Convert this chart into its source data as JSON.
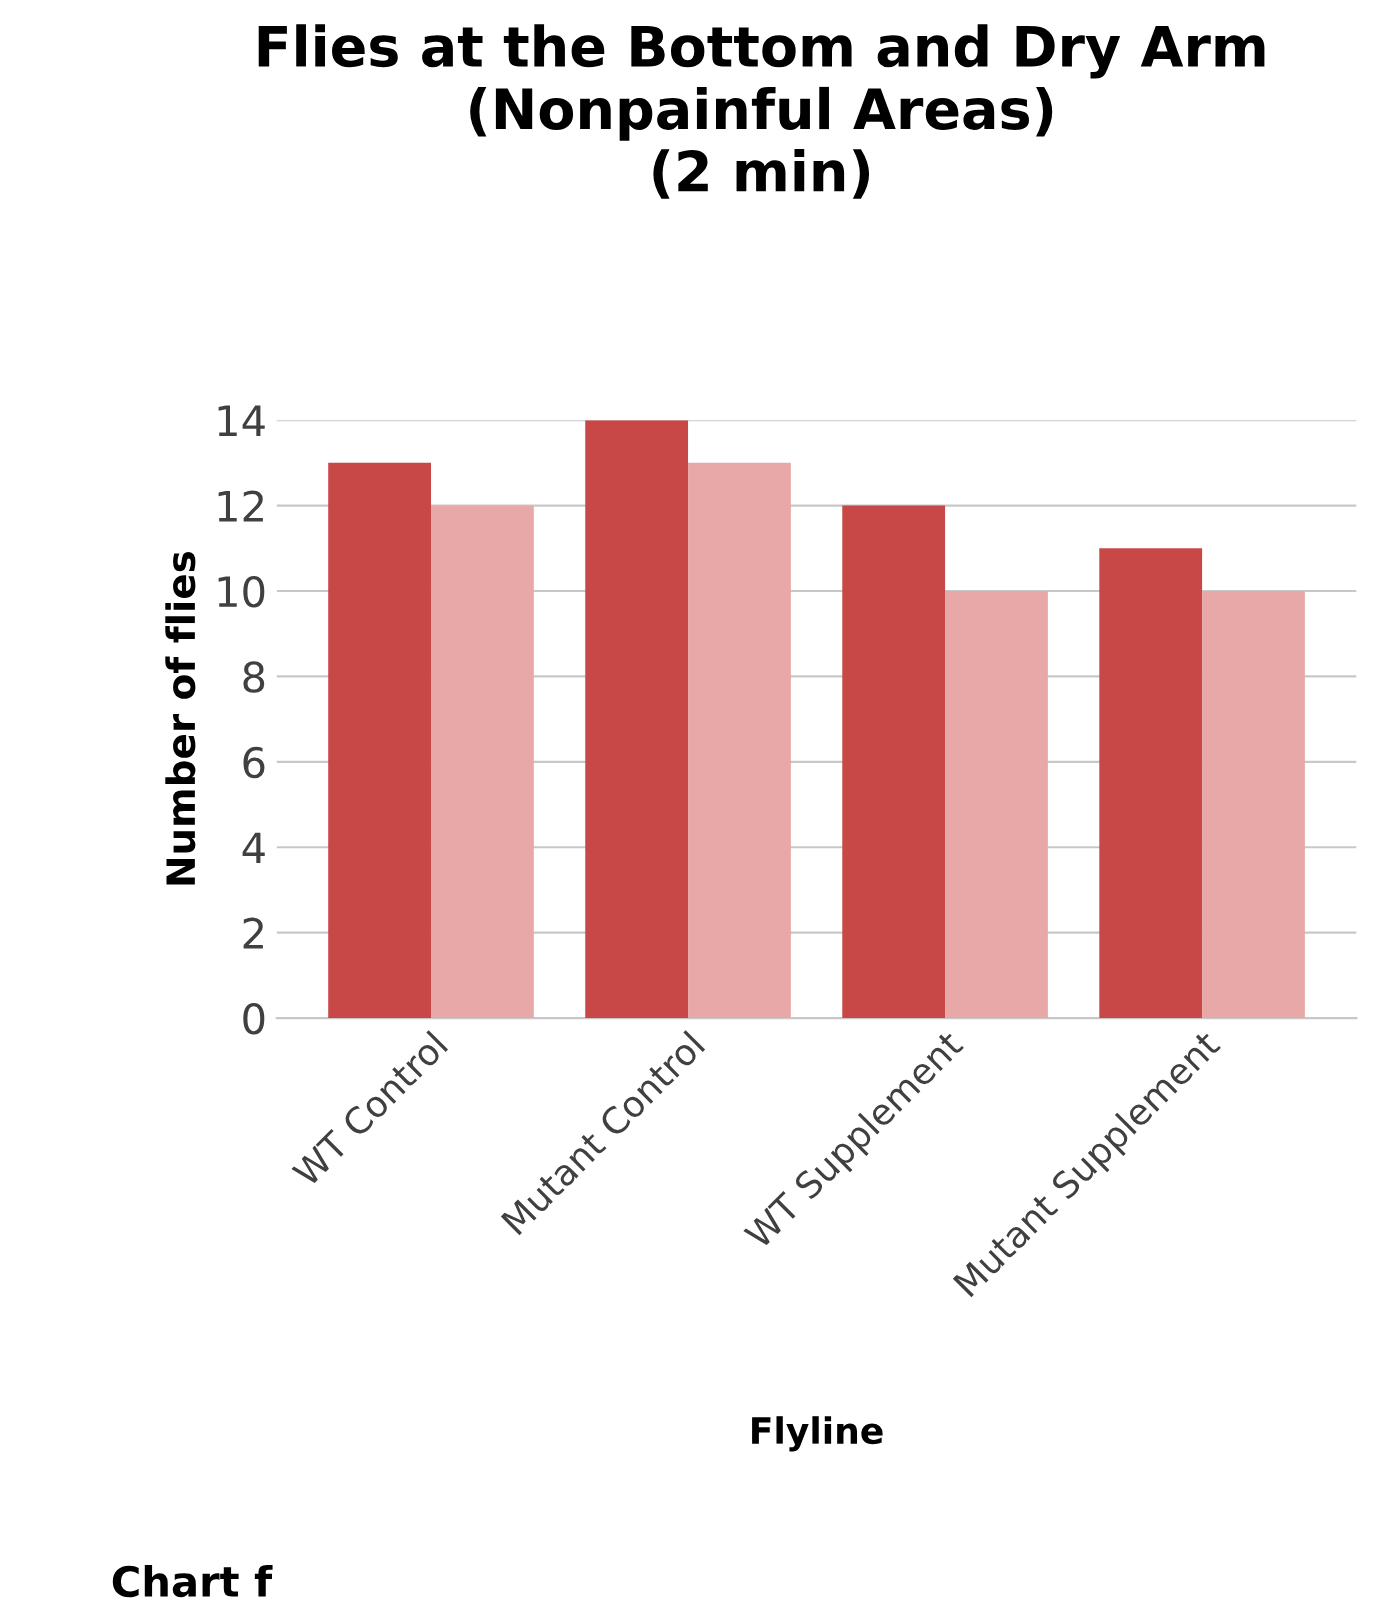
{
  "chart_data": {
    "type": "bar",
    "title": "Flies at the Bottom and Dry Arm\n(Nonpainful Areas)\n(2 min)",
    "xlabel": "Flyline",
    "ylabel": "Number of flies",
    "categories": [
      "WT Control",
      "Mutant Control",
      "WT Supplement",
      "Mutant Supplement"
    ],
    "series": [
      {
        "color": "#c84848",
        "values": [
          13,
          14,
          12,
          11
        ]
      },
      {
        "color": "#e8a8a8",
        "values": [
          12,
          13,
          10,
          10
        ]
      }
    ],
    "ylim": [
      0,
      14
    ],
    "yticks": [
      0,
      2,
      4,
      6,
      8,
      10,
      12,
      14
    ],
    "grid": "y",
    "annotations": [
      "Chart f"
    ]
  }
}
